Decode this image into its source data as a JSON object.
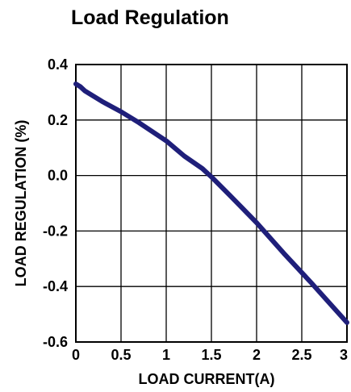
{
  "chart_data": {
    "type": "line",
    "title": "Load Regulation",
    "xlabel": "LOAD CURRENT(A)",
    "ylabel": "LOAD REGULATION  (%)",
    "xlim": [
      0,
      3
    ],
    "ylim": [
      -0.6,
      0.4
    ],
    "grid": true,
    "x_ticks": [
      {
        "value": 0,
        "label": "0"
      },
      {
        "value": 0.5,
        "label": "0.5"
      },
      {
        "value": 1,
        "label": "1"
      },
      {
        "value": 1.5,
        "label": "1.5"
      },
      {
        "value": 2,
        "label": "2"
      },
      {
        "value": 2.5,
        "label": "2.5"
      },
      {
        "value": 3,
        "label": "3"
      }
    ],
    "y_ticks": [
      {
        "value": 0.4,
        "label": "0.4"
      },
      {
        "value": 0.2,
        "label": "0.2"
      },
      {
        "value": 0.0,
        "label": "0.0"
      },
      {
        "value": -0.2,
        "label": "-0.2"
      },
      {
        "value": -0.4,
        "label": "-0.4"
      },
      {
        "value": -0.6,
        "label": "-0.6"
      }
    ],
    "line_color": "#1f1f7a",
    "series": [
      {
        "x": [
          0,
          0.05,
          0.1,
          0.2,
          0.3,
          0.5,
          0.7,
          1.0,
          1.2,
          1.4,
          1.5,
          1.7,
          2.0,
          2.3,
          2.6,
          3.0
        ],
        "y": [
          0.33,
          0.32,
          0.305,
          0.285,
          0.265,
          0.23,
          0.19,
          0.125,
          0.07,
          0.025,
          -0.005,
          -0.07,
          -0.17,
          -0.28,
          -0.385,
          -0.53
        ]
      }
    ]
  }
}
